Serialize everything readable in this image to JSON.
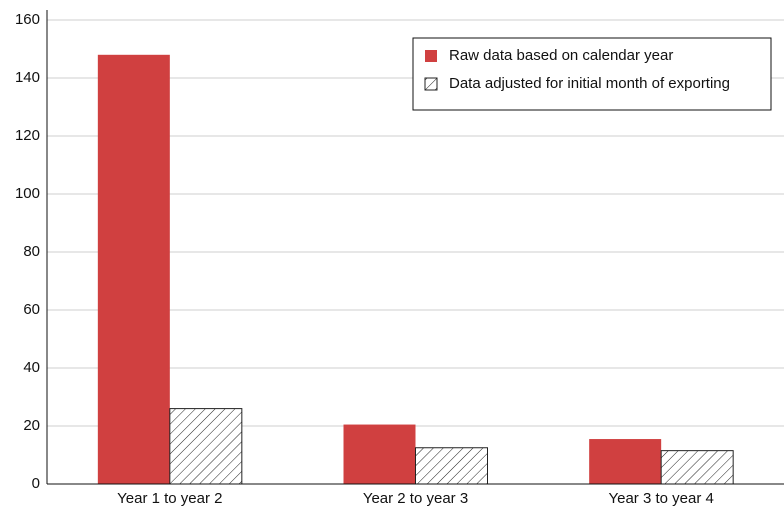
{
  "chart_data": {
    "type": "bar",
    "categories": [
      "Year 1 to year 2",
      "Year 2 to year 3",
      "Year 3 to year 4"
    ],
    "series": [
      {
        "name": "Raw data based on calendar year",
        "color": "#d04040",
        "pattern": "solid",
        "values": [
          148,
          20.5,
          15.5
        ]
      },
      {
        "name": "Data adjusted for initial month of exporting",
        "color": "#222222",
        "pattern": "hatch",
        "values": [
          26,
          12.5,
          11.5
        ]
      }
    ],
    "ylim": [
      0,
      160
    ],
    "yticks": [
      0,
      20,
      40,
      60,
      80,
      100,
      120,
      140,
      160
    ],
    "grid": true,
    "legend": "upper right"
  }
}
